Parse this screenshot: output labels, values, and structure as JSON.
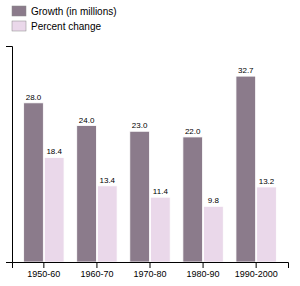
{
  "chart_data": {
    "type": "bar",
    "categories": [
      "1950-60",
      "1960-70",
      "1970-80",
      "1980-90",
      "1990-2000"
    ],
    "series": [
      {
        "name": "Growth (in millions)",
        "color": "#8B7B8B",
        "values": [
          28.0,
          24.0,
          23.0,
          22.0,
          32.7
        ],
        "value_labels": [
          "28.0",
          "24.0",
          "23.0",
          "22.0",
          "32.7"
        ]
      },
      {
        "name": "Percent change",
        "color": "#EAD8EA",
        "values": [
          18.4,
          13.4,
          11.4,
          9.8,
          13.2
        ]
      }
    ],
    "ylim": [
      0,
      38
    ],
    "data_labels": true,
    "tick_labels": "x",
    "legend": "upper left",
    "grid": false
  }
}
